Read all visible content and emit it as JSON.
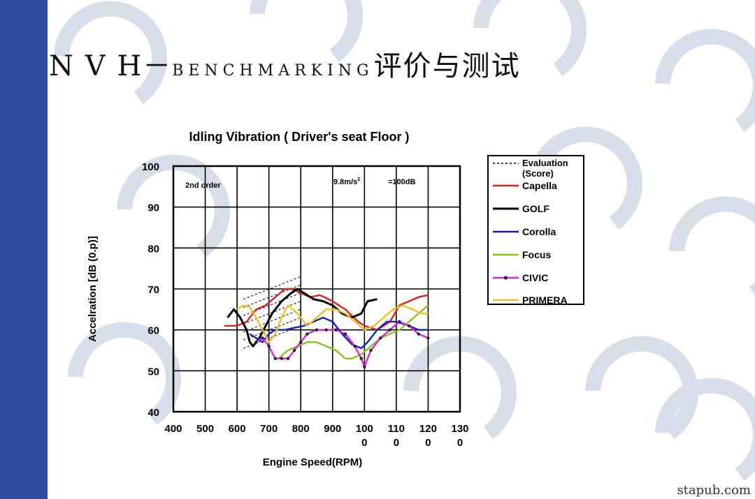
{
  "slide": {
    "title_main": "N V H－",
    "title_bench": "BENCHMARKING",
    "title_cjk": "评价与测试",
    "watermark": "stapub.com"
  },
  "chart_data": {
    "type": "line",
    "title": "Idling Vibration ( Driver's seat Floor )",
    "xlabel": "Engine Speed(RPM)",
    "ylabel": "Accelration [dB (0.p)]",
    "x_ticks": [
      {
        "line1": "400",
        "line2": ""
      },
      {
        "line1": "500",
        "line2": ""
      },
      {
        "line1": "600",
        "line2": ""
      },
      {
        "line1": "700",
        "line2": ""
      },
      {
        "line1": "800",
        "line2": ""
      },
      {
        "line1": "900",
        "line2": ""
      },
      {
        "line1": "100",
        "line2": "0"
      },
      {
        "line1": "110",
        "line2": "0"
      },
      {
        "line1": "120",
        "line2": "0"
      },
      {
        "line1": "130",
        "line2": "0"
      }
    ],
    "y_ticks": [
      "40",
      "50",
      "60",
      "70",
      "80",
      "90",
      "100"
    ],
    "xlim": [
      400,
      1300
    ],
    "ylim": [
      40,
      100
    ],
    "grid": true,
    "legend_position": "right",
    "annotations": {
      "order": "2nd order",
      "ref_left": "9.8m/s",
      "ref_sup": "2",
      "ref_right": "=100dB"
    },
    "evaluation": {
      "name": "Evaluation\n(Score)",
      "lines": [
        {
          "x": [
            620,
            800
          ],
          "y": [
            67.5,
            73
          ]
        },
        {
          "x": [
            620,
            800
          ],
          "y": [
            65.5,
            71
          ]
        },
        {
          "x": [
            620,
            800
          ],
          "y": [
            63.5,
            69
          ]
        },
        {
          "x": [
            620,
            800
          ],
          "y": [
            61.5,
            67
          ]
        },
        {
          "x": [
            620,
            800
          ],
          "y": [
            59.5,
            65
          ]
        },
        {
          "x": [
            620,
            800
          ],
          "y": [
            57.5,
            63
          ]
        },
        {
          "x": [
            620,
            800
          ],
          "y": [
            55.5,
            61
          ]
        }
      ]
    },
    "series": [
      {
        "name": "Capella",
        "color": "#e02020",
        "marker": false,
        "x": [
          560,
          600,
          630,
          660,
          690,
          720,
          750,
          770,
          800,
          830,
          860,
          900,
          940,
          980,
          1000,
          1040,
          1080,
          1110,
          1140,
          1170,
          1200
        ],
        "y": [
          61,
          61,
          62,
          65,
          66,
          68,
          70,
          70,
          69,
          68,
          68.5,
          67,
          65,
          62,
          61,
          60,
          62,
          66,
          67,
          68,
          68.5
        ]
      },
      {
        "name": "GOLF",
        "color": "#000000",
        "marker": false,
        "width": 3,
        "x": [
          570,
          590,
          610,
          630,
          640,
          650,
          670,
          690,
          710,
          740,
          770,
          790,
          810,
          840,
          870,
          900,
          930,
          960,
          990,
          1010,
          1040
        ],
        "y": [
          63,
          65,
          63,
          60,
          57,
          56,
          58,
          61,
          64,
          67,
          69,
          70,
          69,
          67.5,
          67,
          66,
          64,
          63,
          64,
          67,
          67.5
        ]
      },
      {
        "name": "Corolla",
        "color": "#1020c0",
        "marker": false,
        "x": [
          640,
          660,
          680,
          700,
          720,
          750,
          780,
          810,
          840,
          870,
          900,
          930,
          960,
          990,
          1010,
          1040,
          1070,
          1100,
          1140,
          1170,
          1200
        ],
        "y": [
          59,
          58,
          57,
          59,
          60,
          60,
          60.5,
          61,
          62,
          63,
          62,
          59,
          56.5,
          55.5,
          57,
          60,
          62,
          62,
          61,
          60,
          60
        ]
      },
      {
        "name": "Focus",
        "color": "#90c020",
        "marker": false,
        "x": [
          730,
          760,
          790,
          820,
          850,
          880,
          910,
          940,
          960,
          990,
          1020,
          1050,
          1080,
          1110,
          1140,
          1170,
          1200
        ],
        "y": [
          53,
          55,
          56,
          57,
          57,
          56,
          55,
          53,
          53,
          54,
          56,
          58,
          59,
          60,
          62,
          64,
          66
        ]
      },
      {
        "name": "CIVIC",
        "color": "#e020e0",
        "marker": true,
        "marker_color": "#202020",
        "x": [
          660,
          680,
          700,
          720,
          740,
          760,
          780,
          800,
          820,
          850,
          880,
          910,
          940,
          970,
          990,
          1000,
          1020,
          1050,
          1080,
          1110,
          1140,
          1170,
          1200
        ],
        "y": [
          57,
          58,
          56,
          53,
          53,
          53,
          55,
          57,
          59,
          60,
          60,
          60,
          59,
          56,
          53,
          51,
          55,
          58,
          60,
          62,
          61,
          59,
          58
        ]
      },
      {
        "name": "PRIMERA",
        "color": "#f0c020",
        "marker": false,
        "x": [
          600,
          620,
          640,
          660,
          680,
          700,
          720,
          740,
          760,
          790,
          820,
          850,
          880,
          910,
          940,
          970,
          1000,
          1030,
          1060,
          1090,
          1120,
          1150,
          1180,
          1200
        ],
        "y": [
          65,
          66,
          65.5,
          63,
          60,
          57,
          59,
          63,
          66,
          64,
          61,
          63,
          65,
          65,
          64,
          62,
          60,
          61,
          63,
          65,
          66,
          65,
          64,
          64
        ]
      }
    ]
  }
}
